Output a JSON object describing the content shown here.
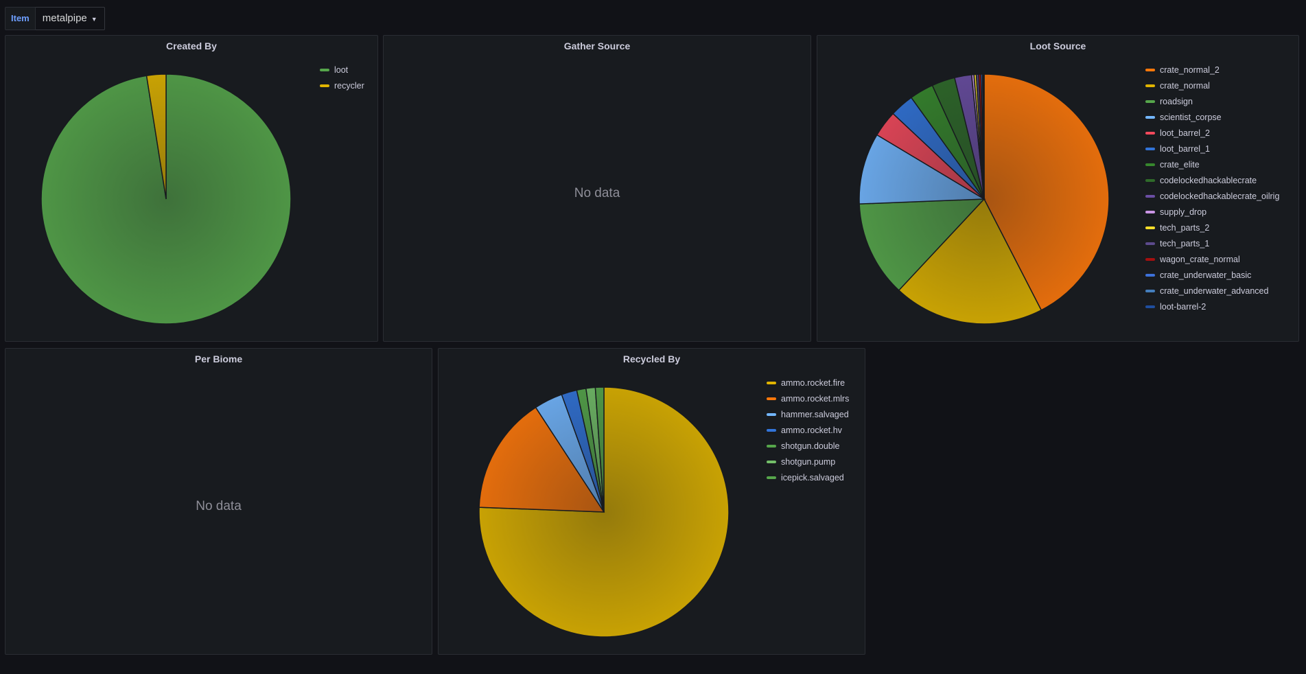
{
  "variable": {
    "label": "Item",
    "value": "metalpipe",
    "chevron_icon": "chevron-down-icon"
  },
  "panels": {
    "created_by": {
      "title": "Created By"
    },
    "gather_source": {
      "title": "Gather Source",
      "empty_text": "No data"
    },
    "loot_source": {
      "title": "Loot Source"
    },
    "per_biome": {
      "title": "Per Biome",
      "empty_text": "No data"
    },
    "recycled_by": {
      "title": "Recycled By"
    }
  },
  "chart_data": [
    {
      "type": "pie",
      "title": "Created By",
      "legend_position": "right",
      "slices": [
        {
          "name": "loot",
          "value": 97.5,
          "color": "#56a64b"
        },
        {
          "name": "recycler",
          "value": 2.5,
          "color": "#e0b400"
        }
      ]
    },
    {
      "type": "pie",
      "title": "Loot Source",
      "legend_position": "right",
      "slices": [
        {
          "name": "crate_normal_2",
          "value": 42.4,
          "color": "#ff780a"
        },
        {
          "name": "crate_normal",
          "value": 19.5,
          "color": "#e0b400"
        },
        {
          "name": "roadsign",
          "value": 12.4,
          "color": "#56a64b"
        },
        {
          "name": "scientist_corpse",
          "value": 9.2,
          "color": "#73b7ff"
        },
        {
          "name": "loot_barrel_2",
          "value": 3.4,
          "color": "#f2495c"
        },
        {
          "name": "loot_barrel_1",
          "value": 3.1,
          "color": "#3274d9"
        },
        {
          "name": "crate_elite",
          "value": 3.1,
          "color": "#37872d"
        },
        {
          "name": "codelockedhackablecrate",
          "value": 3.0,
          "color": "#2f6b2a"
        },
        {
          "name": "codelockedhackablecrate_oilrig",
          "value": 2.2,
          "color": "#6a4ea3"
        },
        {
          "name": "supply_drop",
          "value": 0.3,
          "color": "#ca95e5"
        },
        {
          "name": "tech_parts_2",
          "value": 0.3,
          "color": "#fade2a"
        },
        {
          "name": "tech_parts_1",
          "value": 0.3,
          "color": "#5c4a8c"
        },
        {
          "name": "wagon_crate_normal",
          "value": 0.3,
          "color": "#a31010"
        },
        {
          "name": "crate_underwater_basic",
          "value": 0.2,
          "color": "#3d71d9"
        },
        {
          "name": "crate_underwater_advanced",
          "value": 0.1,
          "color": "#447ebc"
        },
        {
          "name": "loot-barrel-2",
          "value": 0.1,
          "color": "#1f4e9e"
        }
      ]
    },
    {
      "type": "pie",
      "title": "Recycled By",
      "legend_position": "right",
      "slices": [
        {
          "name": "ammo.rocket.fire",
          "value": 75.6,
          "color": "#e0b400"
        },
        {
          "name": "ammo.rocket.mlrs",
          "value": 15.2,
          "color": "#ff780a"
        },
        {
          "name": "hammer.salvaged",
          "value": 3.7,
          "color": "#73b7ff"
        },
        {
          "name": "ammo.rocket.hv",
          "value": 2.0,
          "color": "#3274d9"
        },
        {
          "name": "shotgun.double",
          "value": 1.2,
          "color": "#56a64b"
        },
        {
          "name": "shotgun.pump",
          "value": 1.2,
          "color": "#73bf69"
        },
        {
          "name": "icepick.salvaged",
          "value": 1.1,
          "color": "#56a64b"
        }
      ]
    }
  ]
}
